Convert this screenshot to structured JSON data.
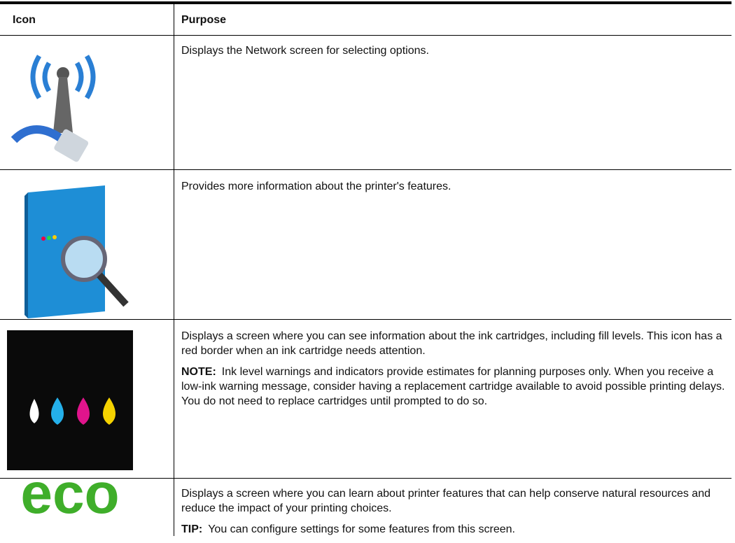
{
  "table": {
    "header": [
      "Icon",
      "Purpose"
    ],
    "rows": [
      {
        "paragraphs": [
          {
            "text": "Displays the Network screen for selecting options."
          }
        ]
      },
      {
        "paragraphs": [
          {
            "text": "Provides more information about the printer's features."
          }
        ]
      },
      {
        "paragraphs": [
          {
            "text": "Displays a screen where you can see information about the ink cartridges, including fill levels. This icon has a red border when an ink cartridge needs attention."
          },
          {
            "label": "NOTE:",
            "text": "Ink level warnings and indicators provide estimates for planning purposes only. When you receive a low-ink warning message, consider having a replacement cartridge available to avoid possible printing delays. You do not need to replace cartridges until prompted to do so."
          }
        ]
      },
      {
        "icon_text": "eco",
        "paragraphs": [
          {
            "text": "Displays a screen where you can learn about printer features that can help conserve natural resources and reduce the impact of your printing choices."
          },
          {
            "label": "TIP:",
            "text": "You can configure settings for some features from this screen."
          }
        ]
      }
    ]
  }
}
